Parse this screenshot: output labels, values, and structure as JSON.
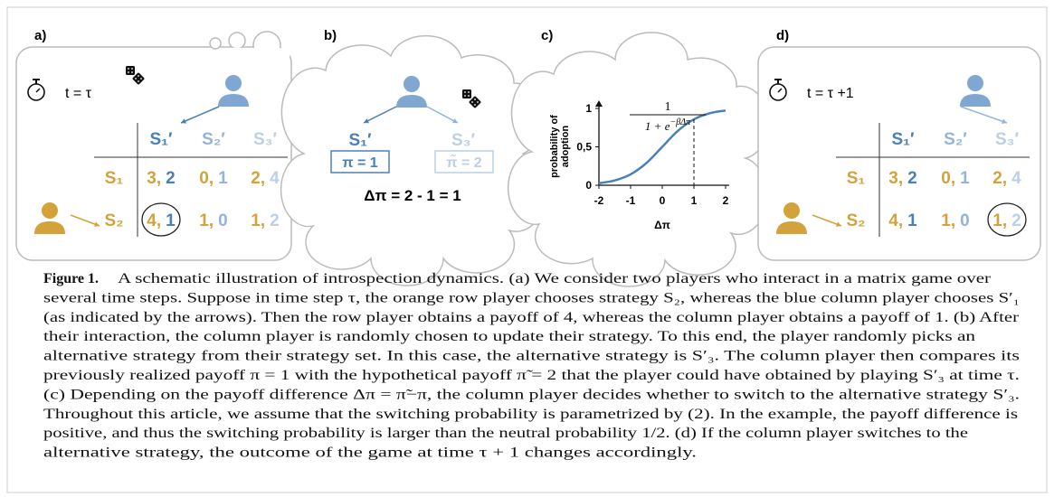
{
  "panels": {
    "a": {
      "label": "a)",
      "time": "t = τ",
      "col_headers": [
        "S₁′",
        "S₂′",
        "S₃′"
      ],
      "row_headers": [
        "S₁",
        "S₂"
      ],
      "payoffs": [
        [
          [
            3,
            2
          ],
          [
            0,
            1
          ],
          [
            2,
            4
          ]
        ],
        [
          [
            4,
            1
          ],
          [
            1,
            0
          ],
          [
            1,
            2
          ]
        ]
      ]
    },
    "b": {
      "label": "b)",
      "chosen": "S₁′",
      "alternative": "S₃′",
      "payoff": "π = 1",
      "alt_payoff": "π̃ = 2",
      "difference": "Δπ = 2 - 1 = 1"
    },
    "c": {
      "type": "line",
      "label": "c)",
      "ylabel": [
        "probability of",
        "adoption"
      ],
      "xlabel": "Δπ",
      "formula_numerator": "1",
      "formula_base": "1 + e",
      "formula_exponent": "−βΔπ",
      "xlim": [
        -2,
        2
      ],
      "ylim": [
        0,
        1
      ],
      "xticks": [
        -2,
        -1,
        0,
        1,
        2
      ],
      "yticks": [
        0,
        {
          "value": 0.5,
          "label": "0,5"
        },
        1
      ],
      "dashed_x": 1,
      "color": "#4a80b8",
      "x": [
        -2,
        -1.5,
        -1,
        -0.5,
        0,
        0.5,
        1,
        1.5,
        2
      ],
      "values": [
        0.027,
        0.063,
        0.142,
        0.289,
        0.5,
        0.711,
        0.858,
        0.937,
        0.973
      ]
    },
    "d": {
      "label": "d)",
      "time": "t = τ +1",
      "col_headers": [
        "S₁′",
        "S₂′",
        "S₃′"
      ],
      "row_headers": [
        "S₁",
        "S₂"
      ],
      "payoffs": [
        [
          [
            3,
            2
          ],
          [
            0,
            1
          ],
          [
            2,
            4
          ]
        ],
        [
          [
            4,
            1
          ],
          [
            1,
            0
          ],
          [
            1,
            2
          ]
        ]
      ]
    }
  },
  "payoff_separator": ",",
  "caption": {
    "label": "Figure 1.",
    "lines": [
      "A schematic illustration of introspection dynamics. (a) We consider two players who interact in a matrix game over",
      "several time steps. Suppose in time step τ, the orange row player chooses strategy S₂, whereas the blue column player chooses S′₁",
      "(as indicated by the arrows). Then the row player obtains a payoff of 4, whereas the column player obtains a payoff of 1. (b) After",
      "their interaction, the column player is randomly chosen to update their strategy. To this end, the player randomly picks an",
      "alternative strategy from their strategy set. In this case, the alternative strategy is S′₃. The column player then compares its",
      "previously realized payoff π = 1 with the hypothetical payoff π̃ = 2 that the player could have obtained by playing S′₃ at time τ.",
      "(c) Depending on the payoff difference Δπ = π̃−π, the column player decides whether to switch to the alternative strategy S′₃.",
      "Throughout this article, we assume that the switching probability is parametrized by (2). In the example, the payoff difference is",
      "positive, and thus the switching probability is larger than the neutral probability 1/2. (d) If the column player switches to the",
      "alternative strategy, the outcome of the game at time τ + 1 changes accordingly."
    ]
  }
}
